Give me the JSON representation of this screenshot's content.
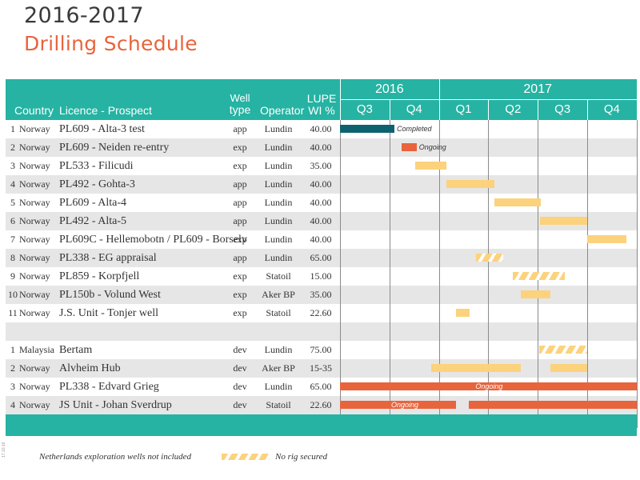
{
  "title": {
    "line1": "2016-2017",
    "line2": "Drilling Schedule"
  },
  "header": {
    "country": "Country",
    "licence": "Licence - Prospect",
    "well_type_line1": "Well",
    "well_type_line2": "type",
    "operator": "Operator",
    "wi_line1": "LUPE",
    "wi_line2": "WI %",
    "years": [
      "2016",
      "2017"
    ],
    "quarters": [
      "Q3",
      "Q4",
      "Q1",
      "Q2",
      "Q3",
      "Q4"
    ]
  },
  "timeline": {
    "start": "2016-Q3",
    "quarters": 6
  },
  "rows": [
    {
      "num": "1",
      "country": "Norway",
      "licence": "PL609 - Alta-3 test",
      "type": "app",
      "operator": "Lundin",
      "wi": "40.00",
      "bar": {
        "style": "completed",
        "start": 0.0,
        "end": 1.1,
        "label": "Completed",
        "label_pos": "after"
      }
    },
    {
      "num": "2",
      "country": "Norway",
      "licence": "PL609 - Neiden re-entry",
      "type": "exp",
      "operator": "Lundin",
      "wi": "40.00",
      "bar": {
        "style": "ongoing",
        "start": 1.25,
        "end": 1.55,
        "label": "Ongoing",
        "label_pos": "after"
      }
    },
    {
      "num": "3",
      "country": "Norway",
      "licence": "PL533 - Filicudi",
      "type": "exp",
      "operator": "Lundin",
      "wi": "35.00",
      "bar": {
        "style": "planned",
        "start": 1.52,
        "end": 2.15
      }
    },
    {
      "num": "4",
      "country": "Norway",
      "licence": "PL492 - Gohta-3",
      "type": "app",
      "operator": "Lundin",
      "wi": "40.00",
      "bar": {
        "style": "planned",
        "start": 2.15,
        "end": 3.12
      }
    },
    {
      "num": "5",
      "country": "Norway",
      "licence": "PL609 - Alta-4",
      "type": "app",
      "operator": "Lundin",
      "wi": "40.00",
      "bar": {
        "style": "planned",
        "start": 3.12,
        "end": 4.06
      }
    },
    {
      "num": "6",
      "country": "Norway",
      "licence": "PL492 - Alta-5",
      "type": "app",
      "operator": "Lundin",
      "wi": "40.00",
      "bar": {
        "style": "planned",
        "start": 4.05,
        "end": 5.0
      }
    },
    {
      "num": "7",
      "country": "Norway",
      "licence": "PL609C - Hellemobotn / PL609 - Borselv",
      "type": "exp",
      "operator": "Lundin",
      "wi": "40.00",
      "bar": {
        "style": "planned",
        "start": 5.0,
        "end": 5.8
      }
    },
    {
      "num": "8",
      "country": "Norway",
      "licence": "PL338 - EG appraisal",
      "type": "app",
      "operator": "Lundin",
      "wi": "65.00",
      "bar": {
        "style": "norig",
        "start": 2.75,
        "end": 3.3
      }
    },
    {
      "num": "9",
      "country": "Norway",
      "licence": "PL859 - Korpfjell",
      "type": "exp",
      "operator": "Statoil",
      "wi": "15.00",
      "bar": {
        "style": "norig",
        "start": 3.5,
        "end": 4.55
      }
    },
    {
      "num": "10",
      "country": "Norway",
      "licence": "PL150b - Volund West",
      "type": "exp",
      "operator": "Aker BP",
      "wi": "35.00",
      "bar": {
        "style": "planned",
        "start": 3.65,
        "end": 4.25
      }
    },
    {
      "num": "11",
      "country": "Norway",
      "licence": "J.S. Unit - Tonjer well",
      "type": "exp",
      "operator": "Statoil",
      "wi": "22.60",
      "bar": {
        "style": "planned",
        "start": 2.35,
        "end": 2.62
      }
    },
    {
      "spacer": true
    },
    {
      "num": "1",
      "country": "Malaysia",
      "licence": "Bertam",
      "type": "dev",
      "operator": "Lundin",
      "wi": "75.00",
      "bar": {
        "style": "norig",
        "start": 4.03,
        "end": 5.0
      }
    },
    {
      "num": "2",
      "country": "Norway",
      "licence": "Alvheim Hub",
      "type": "dev",
      "operator": "Aker BP",
      "wi": "15-35",
      "bars": [
        {
          "style": "planned",
          "start": 1.85,
          "end": 3.65
        },
        {
          "style": "planned",
          "start": 4.25,
          "end": 5.0
        }
      ]
    },
    {
      "num": "3",
      "country": "Norway",
      "licence": "PL338 - Edvard Grieg",
      "type": "dev",
      "operator": "Lundin",
      "wi": "65.00",
      "bar": {
        "style": "ongoing",
        "start": 0.0,
        "end": 6.0,
        "label": "Ongoing",
        "label_pos": "in"
      }
    },
    {
      "num": "4",
      "country": "Norway",
      "licence": "JS Unit - Johan Sverdrup",
      "type": "dev",
      "operator": "Statoil",
      "wi": "22.60",
      "bars": [
        {
          "style": "ongoing",
          "start": 0.0,
          "end": 2.35,
          "label": "Ongoing",
          "label_pos": "in"
        },
        {
          "style": "ongoing",
          "start": 2.6,
          "end": 6.0
        }
      ]
    }
  ],
  "footer": {
    "note": "Netherlands exploration wells not included",
    "legend_label": "No rig secured",
    "tiny_code": "17.10.16"
  },
  "colors": {
    "header": "#26b3a3",
    "completed": "#0e6270",
    "ongoing": "#e8643c",
    "planned": "#fcd27c",
    "shade": "#e6e6e6"
  }
}
